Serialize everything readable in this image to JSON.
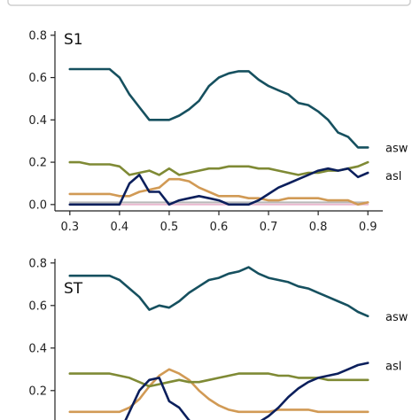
{
  "colors": {
    "navy": "#0b1f5c",
    "teal": "#16505f",
    "olive": "#7f8a35",
    "tan": "#d19a55",
    "pink": "#eab8cf",
    "grey": "#b9b9b9"
  },
  "chart_data": [
    {
      "type": "line",
      "title": "S1",
      "xlim": [
        0.27,
        0.93
      ],
      "ylim": [
        -0.03,
        0.82
      ],
      "xticks": [
        "0.3",
        "0.4",
        "0.5",
        "0.6",
        "0.7",
        "0.8",
        "0.9"
      ],
      "yticks": [
        "0.0",
        "0.2",
        "0.4",
        "0.6",
        "0.8"
      ],
      "x": [
        0.3,
        0.32,
        0.34,
        0.36,
        0.38,
        0.4,
        0.42,
        0.44,
        0.46,
        0.48,
        0.5,
        0.52,
        0.54,
        0.56,
        0.58,
        0.6,
        0.62,
        0.64,
        0.66,
        0.68,
        0.7,
        0.72,
        0.74,
        0.76,
        0.78,
        0.8,
        0.82,
        0.84,
        0.86,
        0.88,
        0.9
      ],
      "series": [
        {
          "name": "asw",
          "color": "teal",
          "values": [
            0.64,
            0.64,
            0.64,
            0.64,
            0.64,
            0.6,
            0.52,
            0.46,
            0.4,
            0.4,
            0.4,
            0.42,
            0.45,
            0.49,
            0.56,
            0.6,
            0.62,
            0.63,
            0.63,
            0.59,
            0.56,
            0.54,
            0.52,
            0.48,
            0.47,
            0.44,
            0.4,
            0.34,
            0.32,
            0.27,
            0.27
          ]
        },
        {
          "name": "asl",
          "color": "navy",
          "values": [
            0.0,
            0.0,
            0.0,
            0.0,
            0.0,
            0.0,
            0.1,
            0.14,
            0.06,
            0.06,
            0.0,
            0.02,
            0.03,
            0.04,
            0.03,
            0.02,
            0.0,
            0.0,
            0.0,
            0.02,
            0.05,
            0.08,
            0.1,
            0.12,
            0.14,
            0.16,
            0.17,
            0.16,
            0.17,
            0.13,
            0.15
          ]
        },
        {
          "name": "",
          "color": "olive",
          "values": [
            0.2,
            0.2,
            0.19,
            0.19,
            0.19,
            0.18,
            0.14,
            0.15,
            0.16,
            0.14,
            0.17,
            0.14,
            0.15,
            0.16,
            0.17,
            0.17,
            0.18,
            0.18,
            0.18,
            0.17,
            0.17,
            0.16,
            0.15,
            0.14,
            0.15,
            0.15,
            0.16,
            0.16,
            0.17,
            0.18,
            0.2
          ]
        },
        {
          "name": "",
          "color": "tan",
          "values": [
            0.05,
            0.05,
            0.05,
            0.05,
            0.05,
            0.04,
            0.04,
            0.06,
            0.07,
            0.08,
            0.12,
            0.12,
            0.11,
            0.08,
            0.06,
            0.04,
            0.04,
            0.04,
            0.03,
            0.03,
            0.02,
            0.02,
            0.03,
            0.03,
            0.03,
            0.03,
            0.02,
            0.02,
            0.02,
            0.0,
            0.01
          ]
        },
        {
          "name": "",
          "color": "pink",
          "values": [
            0.0,
            0.0,
            0.0,
            0.0,
            0.0,
            0.0,
            0.0,
            0.0,
            0.0,
            0.0,
            0.0,
            0.0,
            0.0,
            0.0,
            0.0,
            0.0,
            0.0,
            0.0,
            0.0,
            0.0,
            0.0,
            0.0,
            0.0,
            0.0,
            0.0,
            0.0,
            0.0,
            0.0,
            0.0,
            0.0,
            0.0
          ]
        },
        {
          "name": "",
          "color": "grey",
          "values": [
            0.01,
            0.01,
            0.01,
            0.01,
            0.01,
            0.01,
            0.01,
            0.01,
            0.01,
            0.01,
            0.01,
            0.01,
            0.01,
            0.01,
            0.01,
            0.01,
            0.01,
            0.01,
            0.01,
            0.01,
            0.01,
            0.01,
            0.01,
            0.01,
            0.01,
            0.01,
            0.01,
            0.01,
            0.01,
            0.01,
            0.01
          ]
        }
      ]
    },
    {
      "type": "line",
      "title": "ST",
      "xlim": [
        0.27,
        0.93
      ],
      "ylim": [
        -0.03,
        0.82
      ],
      "xticks": [],
      "yticks": [
        "0.2",
        "0.4",
        "0.6",
        "0.8"
      ],
      "x": [
        0.3,
        0.32,
        0.34,
        0.36,
        0.38,
        0.4,
        0.42,
        0.44,
        0.46,
        0.48,
        0.5,
        0.52,
        0.54,
        0.56,
        0.58,
        0.6,
        0.62,
        0.64,
        0.66,
        0.68,
        0.7,
        0.72,
        0.74,
        0.76,
        0.78,
        0.8,
        0.82,
        0.84,
        0.86,
        0.88,
        0.9
      ],
      "series": [
        {
          "name": "asw",
          "color": "teal",
          "values": [
            0.74,
            0.74,
            0.74,
            0.74,
            0.74,
            0.72,
            0.68,
            0.64,
            0.58,
            0.6,
            0.59,
            0.62,
            0.66,
            0.69,
            0.72,
            0.73,
            0.75,
            0.76,
            0.78,
            0.75,
            0.73,
            0.72,
            0.71,
            0.69,
            0.68,
            0.66,
            0.64,
            0.62,
            0.6,
            0.57,
            0.55
          ]
        },
        {
          "name": "asl",
          "color": "navy",
          "values": [
            0.0,
            0.0,
            0.0,
            0.0,
            0.0,
            0.0,
            0.1,
            0.2,
            0.25,
            0.26,
            0.15,
            0.12,
            0.06,
            0.02,
            0.0,
            0.0,
            0.0,
            0.0,
            0.0,
            0.05,
            0.08,
            0.12,
            0.17,
            0.21,
            0.24,
            0.26,
            0.27,
            0.28,
            0.3,
            0.32,
            0.33
          ]
        },
        {
          "name": "",
          "color": "olive",
          "values": [
            0.28,
            0.28,
            0.28,
            0.28,
            0.28,
            0.27,
            0.26,
            0.24,
            0.22,
            0.23,
            0.24,
            0.25,
            0.24,
            0.24,
            0.25,
            0.26,
            0.27,
            0.28,
            0.28,
            0.28,
            0.28,
            0.27,
            0.27,
            0.26,
            0.26,
            0.26,
            0.25,
            0.25,
            0.25,
            0.25,
            0.25
          ]
        },
        {
          "name": "",
          "color": "tan",
          "values": [
            0.1,
            0.1,
            0.1,
            0.1,
            0.1,
            0.1,
            0.12,
            0.16,
            0.22,
            0.27,
            0.3,
            0.28,
            0.25,
            0.2,
            0.16,
            0.13,
            0.11,
            0.1,
            0.1,
            0.1,
            0.1,
            0.11,
            0.11,
            0.11,
            0.11,
            0.1,
            0.1,
            0.1,
            0.1,
            0.1,
            0.1
          ]
        }
      ]
    }
  ]
}
